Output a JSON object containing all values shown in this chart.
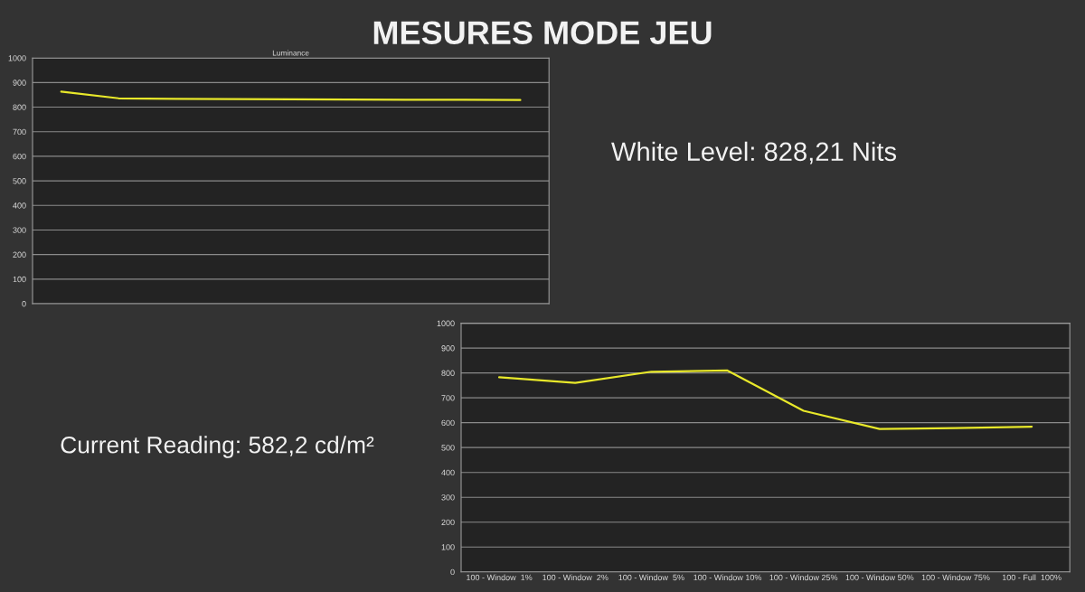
{
  "chart_data": [
    {
      "type": "line",
      "title": "Luminance",
      "categories": [
        null,
        null,
        null,
        null,
        null,
        null,
        null,
        null,
        null
      ],
      "series": [
        {
          "color": "#e8e82a",
          "values": [
            863,
            836,
            834,
            833,
            832,
            831,
            830,
            830,
            829
          ]
        }
      ],
      "ylim": [
        0,
        1000
      ],
      "yticks": [
        0,
        100,
        200,
        300,
        400,
        500,
        600,
        700,
        800,
        900,
        1000
      ],
      "grid": "y",
      "tick_labels": "y",
      "legend": false,
      "annotations": [
        "MESURES MODE JEU",
        "White Level: 828,21 Nits"
      ]
    },
    {
      "type": "line",
      "categories": [
        "100 - Window  1%",
        "100 - Window  2%",
        "100 - Window  5%",
        "100 - Window 10%",
        "100 - Window 25%",
        "100 - Window 50%",
        "100 - Window 75%",
        "100 - Full  100%"
      ],
      "series": [
        {
          "color": "#e8e82a",
          "values": [
            783,
            760,
            805,
            810,
            648,
            575,
            578,
            584
          ]
        }
      ],
      "ylim": [
        0,
        1000
      ],
      "yticks": [
        0,
        100,
        200,
        300,
        400,
        500,
        600,
        700,
        800,
        900,
        1000
      ],
      "grid": "y",
      "legend": false,
      "annotations": [
        "Current Reading: 582,2 cd/m²"
      ]
    }
  ]
}
